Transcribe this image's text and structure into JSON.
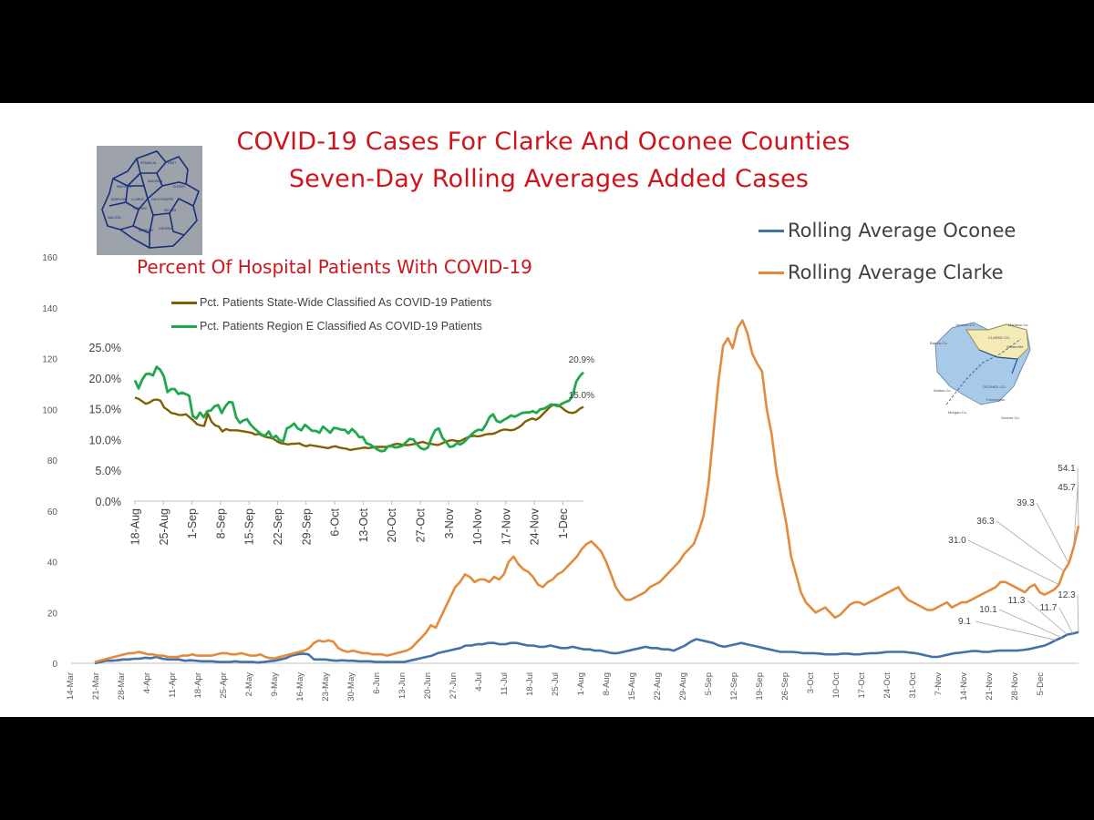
{
  "titles": {
    "line1": "COVID-19 Cases For Clarke And Oconee Counties",
    "line2": "Seven-Day Rolling Averages Added Cases"
  },
  "colors": {
    "oconee": "#4471a8",
    "clarke": "#e38a3c",
    "statewide": "#7f5f00",
    "region_e": "#1fa84c",
    "title_red": "#d0141c",
    "map_bg": "#9ea3ab",
    "map_blue": "#a9c9e8",
    "map_yellow": "#f3eab6"
  },
  "chart_data": [
    {
      "type": "line",
      "x_tick_labels": [
        "14-Mar",
        "21-Mar",
        "28-Mar",
        "4-Apr",
        "11-Apr",
        "18-Apr",
        "25-Apr",
        "2-May",
        "9-May",
        "16-May",
        "23-May",
        "30-May",
        "6-Jun",
        "13-Jun",
        "20-Jun",
        "27-Jun",
        "4-Jul",
        "11-Jul",
        "18-Jul",
        "25-Jul",
        "1-Aug",
        "8-Aug",
        "15-Aug",
        "22-Aug",
        "29-Aug",
        "5-Sep",
        "12-Sep",
        "19-Sep",
        "26-Sep",
        "3-Oct",
        "10-Oct",
        "17-Oct",
        "24-Oct",
        "31-Oct",
        "7-Nov",
        "14-Nov",
        "21-Nov",
        "28-Nov",
        "5-Dec"
      ],
      "y_ticks": [
        0,
        20,
        40,
        60,
        80,
        100,
        120,
        140,
        160
      ],
      "ylim": [
        0,
        160
      ],
      "legend": "top-right",
      "series": [
        {
          "name": "Rolling Average Oconee",
          "color": "oconee",
          "values": [
            0,
            0.5,
            1,
            1,
            1.2,
            1.5,
            1.5,
            1.8,
            1.8,
            2.2,
            2,
            2.5,
            1.8,
            1.5,
            1.5,
            1.5,
            1,
            1.2,
            1,
            0.8,
            0.8,
            0.8,
            0.5,
            0.5,
            0.5,
            0.8,
            0.5,
            0.5,
            0.5,
            0.3,
            0.5,
            0.8,
            1,
            1.5,
            2,
            3,
            3.5,
            3.8,
            3.5,
            1.5,
            1.5,
            1.5,
            1.2,
            1,
            1.2,
            1,
            1,
            0.8,
            0.8,
            0.8,
            0.5,
            0.5,
            0.5,
            0.5,
            0.5,
            0.5,
            1,
            1.5,
            2,
            2.5,
            3,
            4,
            4.5,
            5,
            5.5,
            6,
            7,
            7,
            7.5,
            7.5,
            8,
            8,
            7.5,
            7.5,
            8,
            8,
            7.5,
            7,
            7,
            6.5,
            6.5,
            7,
            6.5,
            6,
            6,
            6.5,
            6,
            5.5,
            5.5,
            5,
            5,
            4.5,
            4,
            4,
            4.5,
            5,
            5.5,
            6,
            6.5,
            6,
            6,
            5.5,
            5.5,
            5,
            6,
            7,
            8.5,
            9.5,
            9,
            8.5,
            8,
            7,
            6.5,
            7,
            7.5,
            8,
            7.5,
            7,
            6.5,
            6,
            5.5,
            5,
            4.5,
            4.5,
            4.5,
            4.3,
            4,
            4,
            4,
            3.8,
            3.5,
            3.5,
            3.5,
            3.8,
            3.8,
            3.5,
            3.5,
            3.8,
            4,
            4,
            4.2,
            4.5,
            4.5,
            4.5,
            4.5,
            4.2,
            4,
            3.5,
            3,
            2.5,
            2.5,
            3,
            3.5,
            4,
            4.2,
            4.5,
            4.8,
            4.8,
            4.5,
            4.5,
            4.8,
            5,
            5,
            5,
            5,
            5.2,
            5.5,
            6,
            6.5,
            7,
            8,
            9.1,
            10.1,
            11.3,
            11.7,
            12.3
          ],
          "annotations": [
            9.1,
            10.1,
            11.3,
            11.7,
            12.3
          ]
        },
        {
          "name": "Rolling Average Clarke",
          "color": "clarke",
          "values": [
            0.5,
            1,
            1.5,
            2,
            2.5,
            3,
            3.5,
            4,
            4,
            4.5,
            4,
            3.5,
            3.5,
            3,
            3,
            2.5,
            2.5,
            2.5,
            3,
            3,
            3.5,
            3,
            3,
            3,
            3,
            3.5,
            4,
            4,
            3.5,
            3.5,
            4,
            3.5,
            3,
            3,
            3.5,
            2.5,
            2,
            2,
            2.5,
            3,
            3.5,
            4,
            4.5,
            5,
            6,
            8,
            9,
            8.5,
            9,
            8.5,
            6,
            5,
            4.5,
            5,
            4.5,
            4,
            4,
            3.5,
            3.5,
            3.5,
            3,
            3.5,
            4,
            4.5,
            5,
            6,
            8,
            10,
            12,
            15,
            14,
            18,
            22,
            26,
            30,
            32,
            35,
            34,
            32,
            33,
            33,
            32,
            34,
            33,
            35,
            40,
            42,
            39,
            37,
            36,
            34,
            31,
            30,
            32,
            33,
            35,
            36,
            38,
            40,
            42,
            45,
            47,
            48,
            46,
            44,
            40,
            35,
            30,
            27,
            25,
            25,
            26,
            27,
            28,
            30,
            31,
            32,
            34,
            36,
            38,
            40,
            43,
            45,
            47,
            52,
            58,
            70,
            90,
            110,
            125,
            128,
            124,
            132,
            135,
            130,
            122,
            118,
            115,
            100,
            90,
            75,
            65,
            55,
            42,
            35,
            28,
            24,
            22,
            20,
            21,
            22,
            20,
            18,
            19,
            21,
            23,
            24,
            24,
            23,
            24,
            25,
            26,
            27,
            28,
            29,
            30,
            27,
            25,
            24,
            23,
            22,
            21,
            21,
            22,
            23,
            24,
            22,
            23,
            24,
            24,
            25,
            26,
            27,
            28,
            29,
            30,
            32,
            32,
            31,
            30,
            29,
            28,
            30,
            31,
            28,
            27,
            28,
            29,
            31.0,
            36.3,
            39.3,
            45.7,
            54.1
          ],
          "annotations": [
            31.0,
            36.3,
            39.3,
            45.7,
            54.1
          ]
        }
      ]
    },
    {
      "type": "line",
      "title": "Percent Of Hospital Patients With COVID-19",
      "x_tick_labels": [
        "18-Aug",
        "25-Aug",
        "1-Sep",
        "8-Sep",
        "15-Sep",
        "22-Sep",
        "29-Sep",
        "6-Oct",
        "13-Oct",
        "20-Oct",
        "27-Oct",
        "3-Nov",
        "10-Nov",
        "17-Nov",
        "24-Nov",
        "1-Dec"
      ],
      "y_tick_labels": [
        "0.0%",
        "5.0%",
        "10.0%",
        "15.0%",
        "20.0%",
        "25.0%"
      ],
      "ylim": [
        0,
        25
      ],
      "legend": "top",
      "series": [
        {
          "name": "Pct. Patients State-Wide Classified As COVID-19 Patients",
          "color": "statewide",
          "values": [
            16.8,
            16.6,
            16.2,
            15.8,
            16,
            16.4,
            16.5,
            16.3,
            15.2,
            14.8,
            14.3,
            14.2,
            14,
            14,
            14.1,
            13.6,
            13.1,
            12.5,
            12.3,
            12.2,
            14.2,
            12.9,
            12.3,
            12.1,
            11.3,
            11.7,
            11.5,
            11.5,
            11.5,
            11.4,
            11.3,
            11.2,
            11.1,
            10.8,
            10.9,
            10.6,
            10.4,
            10.3,
            10.1,
            9.7,
            9.4,
            9.3,
            9.2,
            9.3,
            9.3,
            9.4,
            9.1,
            8.9,
            9.1,
            9,
            8.9,
            8.8,
            8.7,
            8.6,
            8.8,
            8.9,
            8.7,
            8.6,
            8.5,
            8.3,
            8.4,
            8.5,
            8.6,
            8.7,
            8.6,
            8.7,
            8.8,
            8.8,
            8.8,
            8.8,
            9,
            9.2,
            9.3,
            9.2,
            9.1,
            9.1,
            9.2,
            9.3,
            9.5,
            9.6,
            9.4,
            9.3,
            9.2,
            9.1,
            9.3,
            9.6,
            9.8,
            9.9,
            9.8,
            9.7,
            10,
            10.3,
            10.5,
            10.6,
            10.5,
            10.6,
            10.8,
            10.9,
            10.9,
            11.1,
            11.4,
            11.6,
            11.6,
            11.5,
            11.6,
            11.9,
            12.3,
            12.9,
            13.2,
            13.4,
            13.2,
            13.6,
            14.2,
            14.8,
            15.4,
            15.7,
            15.6,
            15.2,
            14.7,
            14.4,
            14.3,
            14.5,
            15,
            15.3
          ],
          "last_label": "15.0%"
        },
        {
          "name": "Pct. Patients Region E Classified As COVID-19 Patients",
          "color": "region_e",
          "values": [
            19.6,
            18.3,
            19.7,
            20.6,
            20.7,
            20.4,
            21.8,
            21.3,
            20.3,
            17.7,
            18.2,
            18.2,
            17.4,
            17.6,
            17.4,
            17.1,
            13.8,
            13.4,
            14.4,
            13.6,
            14.6,
            14.7,
            15.4,
            15.6,
            14.3,
            15.4,
            16.1,
            16,
            13.6,
            12.7,
            13.1,
            13.3,
            12.4,
            11.8,
            11.3,
            10.8,
            10.6,
            11.3,
            10.2,
            10.6,
            9.9,
            9.7,
            11.8,
            12.1,
            12.6,
            11.8,
            11.5,
            12.4,
            11.9,
            11.4,
            11.4,
            11.1,
            12.1,
            11.6,
            11.1,
            11.9,
            11.8,
            11.6,
            11.6,
            11,
            11.7,
            11.2,
            10.4,
            10.4,
            9.4,
            9.2,
            8.8,
            8.4,
            8.1,
            8.2,
            8.9,
            8.9,
            8.7,
            8.8,
            9,
            9.6,
            10.1,
            10,
            9.2,
            8.6,
            8.4,
            8.7,
            10.3,
            11.5,
            11.8,
            10.3,
            9.6,
            8.8,
            8.9,
            9.4,
            9.2,
            9.6,
            10.2,
            10.8,
            11.3,
            11.6,
            11.5,
            12.4,
            13.6,
            14.1,
            13,
            12.8,
            13.2,
            13.5,
            13.9,
            13.7,
            14,
            14.3,
            14.4,
            14.4,
            14.6,
            14.3,
            14.9,
            15,
            15.3,
            15.7,
            15.6,
            15.4,
            15.8,
            16.1,
            16.3,
            17.1,
            19.4,
            20.3,
            20.9
          ],
          "last_label": "20.9%"
        }
      ]
    }
  ]
}
